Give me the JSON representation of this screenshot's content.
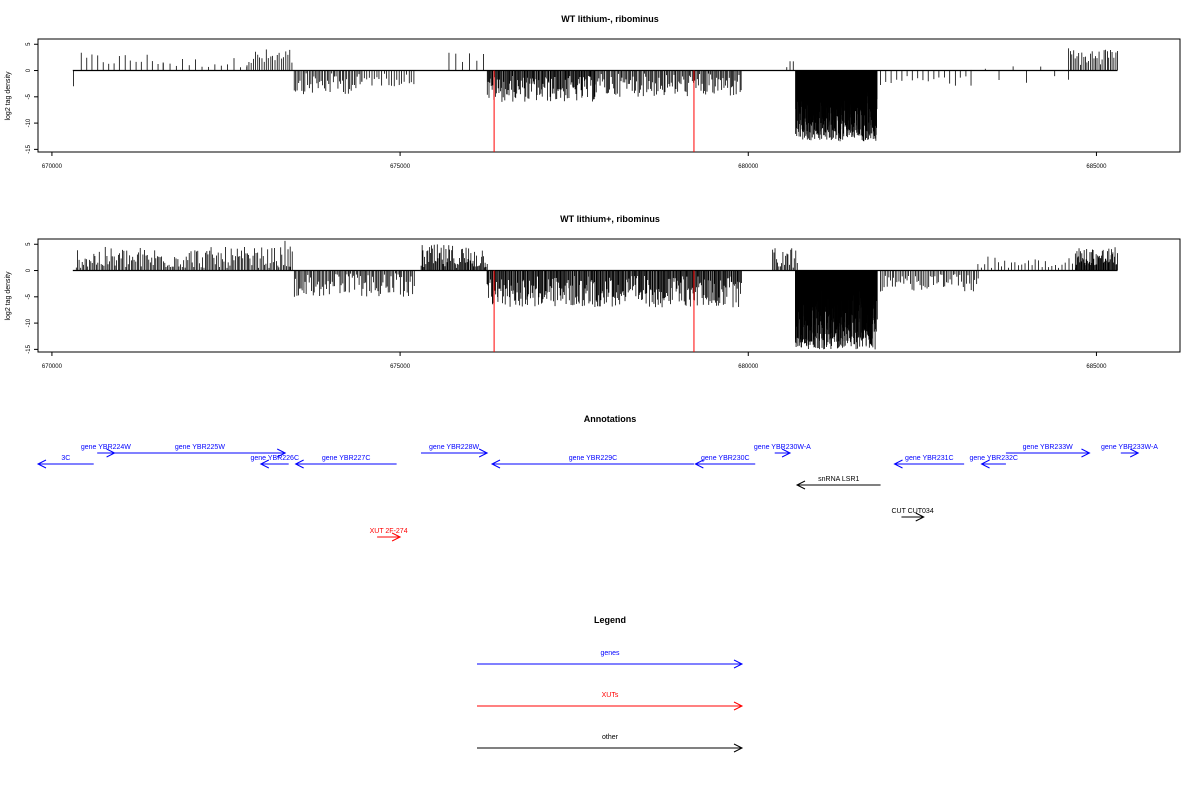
{
  "chart_data": [
    {
      "type": "bar",
      "title": "WT lithium-, ribominus",
      "ylabel": "log2 tag density",
      "xlabel": "",
      "xlim": [
        669800,
        686200
      ],
      "ylim": [
        -15.5,
        6
      ],
      "x_ticks": [
        "670000",
        "675000",
        "680000",
        "685000"
      ],
      "y_ticks": [
        "5",
        "0",
        "-5",
        "-10",
        "-15"
      ],
      "track_range": [
        670300,
        685300
      ],
      "markers": [
        676350,
        679220
      ],
      "marker_depth": -15.5,
      "segments": [
        {
          "x0": 670300,
          "x1": 670320,
          "n": 1,
          "min": -3,
          "max": -3
        },
        {
          "x0": 670420,
          "x1": 671600,
          "n": 16,
          "min": 1,
          "max": 3.4
        },
        {
          "x0": 671600,
          "x1": 672800,
          "n": 14,
          "min": 0.6,
          "max": 2.5
        },
        {
          "x0": 672800,
          "x1": 673450,
          "n": 22,
          "min": 1,
          "max": 4.2
        },
        {
          "x0": 673480,
          "x1": 674450,
          "n": 46,
          "min": -4.5,
          "max": -0.5
        },
        {
          "x0": 674450,
          "x1": 675200,
          "n": 22,
          "min": -3,
          "max": -0.5
        },
        {
          "x0": 675700,
          "x1": 676200,
          "n": 6,
          "min": 1.5,
          "max": 3.5
        },
        {
          "x0": 676250,
          "x1": 677800,
          "n": 130,
          "min": -6,
          "max": -1
        },
        {
          "x0": 677800,
          "x1": 679900,
          "n": 120,
          "min": -5,
          "max": -0.5
        },
        {
          "x0": 680550,
          "x1": 680650,
          "n": 3,
          "min": 0.5,
          "max": 3
        },
        {
          "x0": 680680,
          "x1": 681850,
          "n": 500,
          "min": -13.5,
          "max": -3.5
        },
        {
          "x0": 681900,
          "x1": 683200,
          "n": 18,
          "min": -3,
          "max": -0.5
        },
        {
          "x0": 683200,
          "x1": 684600,
          "n": 8,
          "min": -2.5,
          "max": 1.5
        },
        {
          "x0": 684600,
          "x1": 685300,
          "n": 30,
          "min": 1,
          "max": 4.5
        }
      ]
    },
    {
      "type": "bar",
      "title": "WT lithium+, ribominus",
      "ylabel": "log2 tag density",
      "xlabel": "",
      "xlim": [
        669800,
        686200
      ],
      "ylim": [
        -15.5,
        6
      ],
      "x_ticks": [
        "670000",
        "675000",
        "680000",
        "685000"
      ],
      "y_ticks": [
        "5",
        "0",
        "-5",
        "-10",
        "-15"
      ],
      "track_range": [
        670300,
        685300
      ],
      "markers": [
        676350,
        679220
      ],
      "marker_depth": -15.5,
      "segments": [
        {
          "x0": 670350,
          "x1": 673450,
          "n": 150,
          "min": 0.5,
          "max": 4.5
        },
        {
          "x0": 673350,
          "x1": 673420,
          "n": 2,
          "min": 4,
          "max": 6
        },
        {
          "x0": 673480,
          "x1": 675200,
          "n": 90,
          "min": -5,
          "max": -0.5
        },
        {
          "x0": 675300,
          "x1": 676250,
          "n": 70,
          "min": 0.5,
          "max": 5
        },
        {
          "x0": 676250,
          "x1": 679900,
          "n": 300,
          "min": -7,
          "max": -1
        },
        {
          "x0": 680350,
          "x1": 680700,
          "n": 20,
          "min": 0.5,
          "max": 4.5
        },
        {
          "x0": 680680,
          "x1": 681850,
          "n": 500,
          "min": -15,
          "max": -3
        },
        {
          "x0": 681900,
          "x1": 683300,
          "n": 60,
          "min": -4,
          "max": -0.5
        },
        {
          "x0": 683300,
          "x1": 684700,
          "n": 30,
          "min": 0.5,
          "max": 3
        },
        {
          "x0": 684700,
          "x1": 685300,
          "n": 60,
          "min": 1,
          "max": 4.5
        }
      ]
    }
  ],
  "annotations": {
    "title": "Annotations",
    "colors": {
      "gene": "#0000ff",
      "xut": "#ff0000",
      "other": "#000000"
    },
    "items": [
      {
        "label": "3C",
        "x0": 669780,
        "x1": 670600,
        "strand": "-",
        "row": 1,
        "kind": "gene"
      },
      {
        "label": "gene YBR224W",
        "x0": 670650,
        "x1": 670900,
        "strand": "+",
        "row": 0,
        "kind": "gene"
      },
      {
        "label": "gene YBR225W",
        "x0": 670900,
        "x1": 673350,
        "strand": "+",
        "row": 0,
        "kind": "gene"
      },
      {
        "label": "gene YBR226C",
        "x0": 673000,
        "x1": 673400,
        "strand": "-",
        "row": 1,
        "kind": "gene"
      },
      {
        "label": "gene YBR227C",
        "x0": 673500,
        "x1": 674950,
        "strand": "-",
        "row": 1,
        "kind": "gene"
      },
      {
        "label": "gene YBR228W",
        "x0": 675300,
        "x1": 676250,
        "strand": "+",
        "row": 0,
        "kind": "gene"
      },
      {
        "label": "gene YBR229C",
        "x0": 676320,
        "x1": 679220,
        "strand": "-",
        "row": 1,
        "kind": "gene"
      },
      {
        "label": "gene YBR230C",
        "x0": 679240,
        "x1": 680100,
        "strand": "-",
        "row": 1,
        "kind": "gene"
      },
      {
        "label": "gene YBR230W-A",
        "x0": 680380,
        "x1": 680600,
        "strand": "+",
        "row": 0,
        "kind": "gene"
      },
      {
        "label": "snRNA LSR1",
        "x0": 680700,
        "x1": 681900,
        "strand": "-",
        "row": 2,
        "kind": "other"
      },
      {
        "label": "gene YBR231C",
        "x0": 682100,
        "x1": 683100,
        "strand": "-",
        "row": 1,
        "kind": "gene"
      },
      {
        "label": "gene YBR232C",
        "x0": 683350,
        "x1": 683700,
        "strand": "-",
        "row": 1,
        "kind": "gene"
      },
      {
        "label": "gene YBR233W",
        "x0": 683700,
        "x1": 684900,
        "strand": "+",
        "row": 0,
        "kind": "gene"
      },
      {
        "label": "gene YBR233W-A",
        "x0": 685350,
        "x1": 685600,
        "strand": "+",
        "row": 0,
        "kind": "gene"
      },
      {
        "label": "CUT CUT034",
        "x0": 682200,
        "x1": 682520,
        "strand": "+",
        "row": 3,
        "kind": "other"
      },
      {
        "label": "XUT 2F-274",
        "x0": 674670,
        "x1": 675000,
        "strand": "+",
        "row": 4,
        "kind": "xut"
      }
    ]
  },
  "legend": {
    "title": "Legend",
    "items": [
      {
        "label": "genes",
        "color": "#0000ff"
      },
      {
        "label": "XUTs",
        "color": "#ff0000"
      },
      {
        "label": "other",
        "color": "#000000"
      }
    ]
  }
}
